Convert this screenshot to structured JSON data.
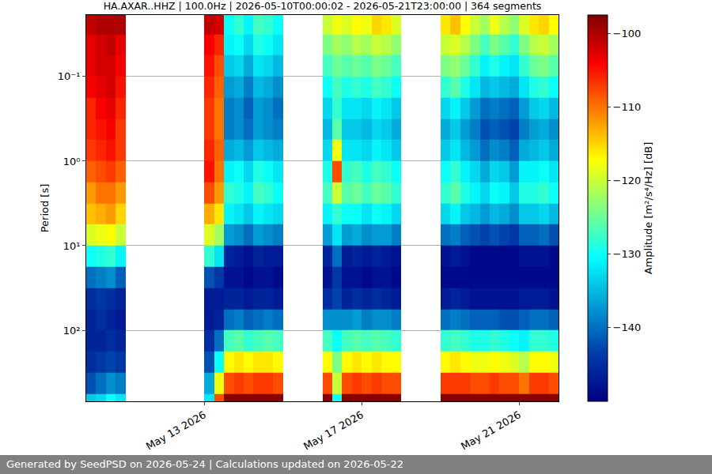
{
  "chart_data": {
    "type": "heatmap",
    "title": "HA.AXAR..HHZ | 100.0Hz | 2026-05-10T00:00:02 - 2026-05-21T23:00:00 | 364 segments",
    "y_label": "Period [s]",
    "z_label": "Amplitude [m²/s⁴/Hz] [dB]",
    "log": "y",
    "grid": "y",
    "color": "Jet",
    "xlim": [
      "2026-05-10 00:00",
      "2026-05-22 00:00"
    ],
    "xticks": [
      {
        "value": "2026-05-13",
        "label": "May 13 2026"
      },
      {
        "value": "2026-05-17",
        "label": "May 17 2026"
      },
      {
        "value": "2026-05-21",
        "label": "May 21 2026"
      }
    ],
    "ylim": [
      693,
      0.0187
    ],
    "yticks": [
      {
        "value": 0.1,
        "label": "10⁻¹"
      },
      {
        "value": 1,
        "label": "10⁰"
      },
      {
        "value": 10,
        "label": "10¹"
      },
      {
        "value": 100,
        "label": "10²"
      }
    ],
    "zlim": [
      -150,
      -97.5
    ],
    "zticks": [
      -100,
      -110,
      -120,
      -130,
      -140
    ],
    "period_bins": [
      0.0178,
      0.0316,
      0.0562,
      0.1,
      0.178,
      0.316,
      0.562,
      1,
      1.78,
      3.16,
      5.62,
      10,
      17.8,
      31.6,
      56.2,
      100,
      178,
      316,
      562,
      1000
    ],
    "x": [
      "2026-05-10 03:00",
      "2026-05-10 09:00",
      "2026-05-10 15:00",
      "2026-05-10 21:00",
      "2026-05-11 03:00",
      "2026-05-11 09:00",
      "2026-05-11 15:00",
      "2026-05-11 21:00",
      "2026-05-12 03:00",
      "2026-05-12 09:00",
      "2026-05-12 15:00",
      "2026-05-12 21:00",
      "2026-05-13 03:00",
      "2026-05-13 09:00",
      "2026-05-13 15:00",
      "2026-05-13 21:00",
      "2026-05-14 03:00",
      "2026-05-14 09:00",
      "2026-05-14 15:00",
      "2026-05-14 21:00",
      "2026-05-15 03:00",
      "2026-05-15 09:00",
      "2026-05-15 15:00",
      "2026-05-15 21:00",
      "2026-05-16 03:00",
      "2026-05-16 09:00",
      "2026-05-16 15:00",
      "2026-05-16 21:00",
      "2026-05-17 03:00",
      "2026-05-17 09:00",
      "2026-05-17 15:00",
      "2026-05-17 21:00",
      "2026-05-18 03:00",
      "2026-05-18 09:00",
      "2026-05-18 15:00",
      "2026-05-18 21:00",
      "2026-05-19 03:00",
      "2026-05-19 09:00",
      "2026-05-19 15:00",
      "2026-05-19 21:00",
      "2026-05-20 03:00",
      "2026-05-20 09:00",
      "2026-05-20 15:00",
      "2026-05-20 21:00",
      "2026-05-21 03:00",
      "2026-05-21 09:00",
      "2026-05-21 15:00",
      "2026-05-21 21:00"
    ],
    "cells": [
      [
        -101,
        -103,
        -103,
        -104,
        -106,
        -106,
        -107,
        -109,
        -112,
        -114,
        -119,
        -130,
        -140,
        -145,
        -146,
        -146,
        -145,
        -142,
        -134
      ],
      [
        -100,
        -102,
        -102,
        -103,
        -104,
        -105,
        -106,
        -108,
        -110,
        -113,
        -118,
        -129,
        -139,
        -144,
        -145,
        -146,
        -144,
        -140,
        -133
      ],
      [
        -100,
        -101,
        -102,
        -102,
        -103,
        -104,
        -105,
        -107,
        -110,
        -112,
        -117,
        -128,
        -138,
        -145,
        -146,
        -145,
        -143,
        -138,
        -130
      ],
      [
        -100,
        -103,
        -104,
        -105,
        -106,
        -107,
        -107,
        -109,
        -112,
        -115,
        -120,
        -131,
        -141,
        -146,
        -147,
        -146,
        -144,
        -139,
        -132
      ],
      null,
      null,
      null,
      null,
      null,
      null,
      null,
      null,
      [
        -101,
        -104,
        -105,
        -106,
        -107,
        -107,
        -106,
        -105,
        -108,
        -113,
        -119,
        -128,
        -142,
        -147,
        -147,
        -145,
        -142,
        -136,
        -132
      ],
      [
        -102,
        -106,
        -108,
        -109,
        -110,
        -110,
        -109,
        -110,
        -112,
        -116,
        -122,
        -132,
        -144,
        -147,
        -146,
        -140,
        -130,
        -118,
        -108
      ],
      [
        -130,
        -131,
        -134,
        -137,
        -139,
        -139,
        -136,
        -131,
        -128,
        -131,
        -137,
        -146,
        -148,
        -146,
        -140,
        -127,
        -117,
        -108,
        -98
      ],
      [
        -128,
        -130,
        -133,
        -136,
        -138,
        -138,
        -135,
        -130,
        -129,
        -132,
        -138,
        -147,
        -148,
        -146,
        -139,
        -126,
        -116,
        -107,
        -98
      ],
      [
        -131,
        -133,
        -136,
        -139,
        -141,
        -140,
        -137,
        -133,
        -131,
        -134,
        -140,
        -148,
        -149,
        -147,
        -141,
        -128,
        -117,
        -108,
        -98
      ],
      [
        -127,
        -129,
        -132,
        -135,
        -137,
        -137,
        -134,
        -129,
        -127,
        -131,
        -137,
        -146,
        -148,
        -146,
        -140,
        -127,
        -116,
        -107,
        -98
      ],
      [
        -128,
        -130,
        -133,
        -136,
        -138,
        -138,
        -135,
        -130,
        -128,
        -132,
        -138,
        -147,
        -148,
        -146,
        -139,
        -126,
        -116,
        -107,
        -98
      ],
      [
        -130,
        -132,
        -135,
        -138,
        -140,
        -139,
        -136,
        -132,
        -130,
        -133,
        -139,
        -147,
        -149,
        -147,
        -140,
        -127,
        -117,
        -108,
        -98
      ],
      null,
      null,
      null,
      null,
      [
        -120,
        -124,
        -127,
        -130,
        -133,
        -135,
        -133,
        -129,
        -127,
        -131,
        -137,
        -146,
        -148,
        -145,
        -138,
        -127,
        -117,
        -108,
        -98
      ],
      [
        -118,
        -122,
        -125,
        -127,
        -128,
        -126,
        -118,
        -108,
        -120,
        -128,
        -132,
        -140,
        -144,
        -143,
        -138,
        -130,
        -124,
        -120,
        -130
      ],
      [
        -119,
        -123,
        -126,
        -129,
        -132,
        -134,
        -132,
        -128,
        -126,
        -130,
        -137,
        -147,
        -148,
        -146,
        -138,
        -127,
        -117,
        -108,
        -98
      ],
      [
        -117,
        -121,
        -125,
        -128,
        -132,
        -134,
        -132,
        -127,
        -125,
        -130,
        -136,
        -146,
        -148,
        -145,
        -137,
        -126,
        -116,
        -107,
        -98
      ],
      [
        -118,
        -122,
        -126,
        -129,
        -133,
        -135,
        -133,
        -129,
        -127,
        -132,
        -138,
        -147,
        -149,
        -146,
        -139,
        -127,
        -117,
        -108,
        -98
      ],
      [
        -115,
        -120,
        -124,
        -127,
        -131,
        -133,
        -131,
        -127,
        -125,
        -130,
        -137,
        -146,
        -148,
        -145,
        -138,
        -126,
        -116,
        -107,
        -98
      ],
      [
        -116,
        -121,
        -125,
        -128,
        -132,
        -134,
        -132,
        -128,
        -126,
        -131,
        -137,
        -147,
        -148,
        -146,
        -138,
        -127,
        -117,
        -108,
        -98
      ],
      [
        -119,
        -123,
        -127,
        -130,
        -134,
        -136,
        -134,
        -130,
        -128,
        -133,
        -139,
        -148,
        -149,
        -147,
        -139,
        -128,
        -117,
        -108,
        -98
      ],
      null,
      null,
      null,
      null,
      [
        -116,
        -120,
        -124,
        -128,
        -133,
        -136,
        -134,
        -130,
        -128,
        -133,
        -140,
        -148,
        -149,
        -147,
        -140,
        -128,
        -117,
        -107,
        -98
      ],
      [
        -114,
        -119,
        -123,
        -126,
        -131,
        -134,
        -132,
        -128,
        -126,
        -131,
        -139,
        -147,
        -149,
        -146,
        -139,
        -127,
        -116,
        -107,
        -98
      ],
      [
        -117,
        -121,
        -125,
        -129,
        -134,
        -137,
        -135,
        -131,
        -129,
        -134,
        -141,
        -148,
        -149,
        -147,
        -140,
        -128,
        -117,
        -107,
        -98
      ],
      [
        -120,
        -124,
        -128,
        -132,
        -137,
        -139,
        -137,
        -133,
        -131,
        -135,
        -142,
        -149,
        -149,
        -148,
        -141,
        -129,
        -118,
        -108,
        -98
      ],
      [
        -122,
        -127,
        -131,
        -135,
        -140,
        -142,
        -140,
        -136,
        -133,
        -137,
        -143,
        -149,
        -149,
        -148,
        -141,
        -129,
        -118,
        -108,
        -98
      ],
      [
        -118,
        -124,
        -129,
        -134,
        -139,
        -141,
        -138,
        -133,
        -130,
        -135,
        -142,
        -149,
        -149,
        -148,
        -141,
        -128,
        -117,
        -107,
        -98
      ],
      [
        -121,
        -126,
        -131,
        -135,
        -140,
        -142,
        -139,
        -134,
        -131,
        -136,
        -143,
        -149,
        -149,
        -148,
        -142,
        -129,
        -118,
        -108,
        -98
      ],
      [
        -123,
        -128,
        -132,
        -136,
        -141,
        -143,
        -141,
        -137,
        -134,
        -138,
        -144,
        -149,
        -149,
        -148,
        -142,
        -130,
        -119,
        -108,
        -98
      ],
      [
        -119,
        -124,
        -128,
        -132,
        -137,
        -139,
        -136,
        -131,
        -129,
        -134,
        -141,
        -148,
        -149,
        -147,
        -141,
        -131,
        -121,
        -110,
        -98
      ],
      [
        -116,
        -121,
        -125,
        -129,
        -134,
        -137,
        -135,
        -131,
        -129,
        -134,
        -141,
        -148,
        -149,
        -147,
        -140,
        -128,
        -117,
        -107,
        -98
      ],
      [
        -115,
        -120,
        -124,
        -128,
        -133,
        -136,
        -134,
        -130,
        -128,
        -133,
        -140,
        -148,
        -149,
        -147,
        -140,
        -128,
        -117,
        -107,
        -98
      ],
      [
        -117,
        -122,
        -126,
        -130,
        -135,
        -138,
        -136,
        -132,
        -130,
        -135,
        -142,
        -149,
        -149,
        -148,
        -141,
        -129,
        -118,
        -108,
        -98
      ]
    ]
  },
  "footer": "Generated by SeedPSD on 2026-05-24 | Calculations updated on 2026-05-22"
}
